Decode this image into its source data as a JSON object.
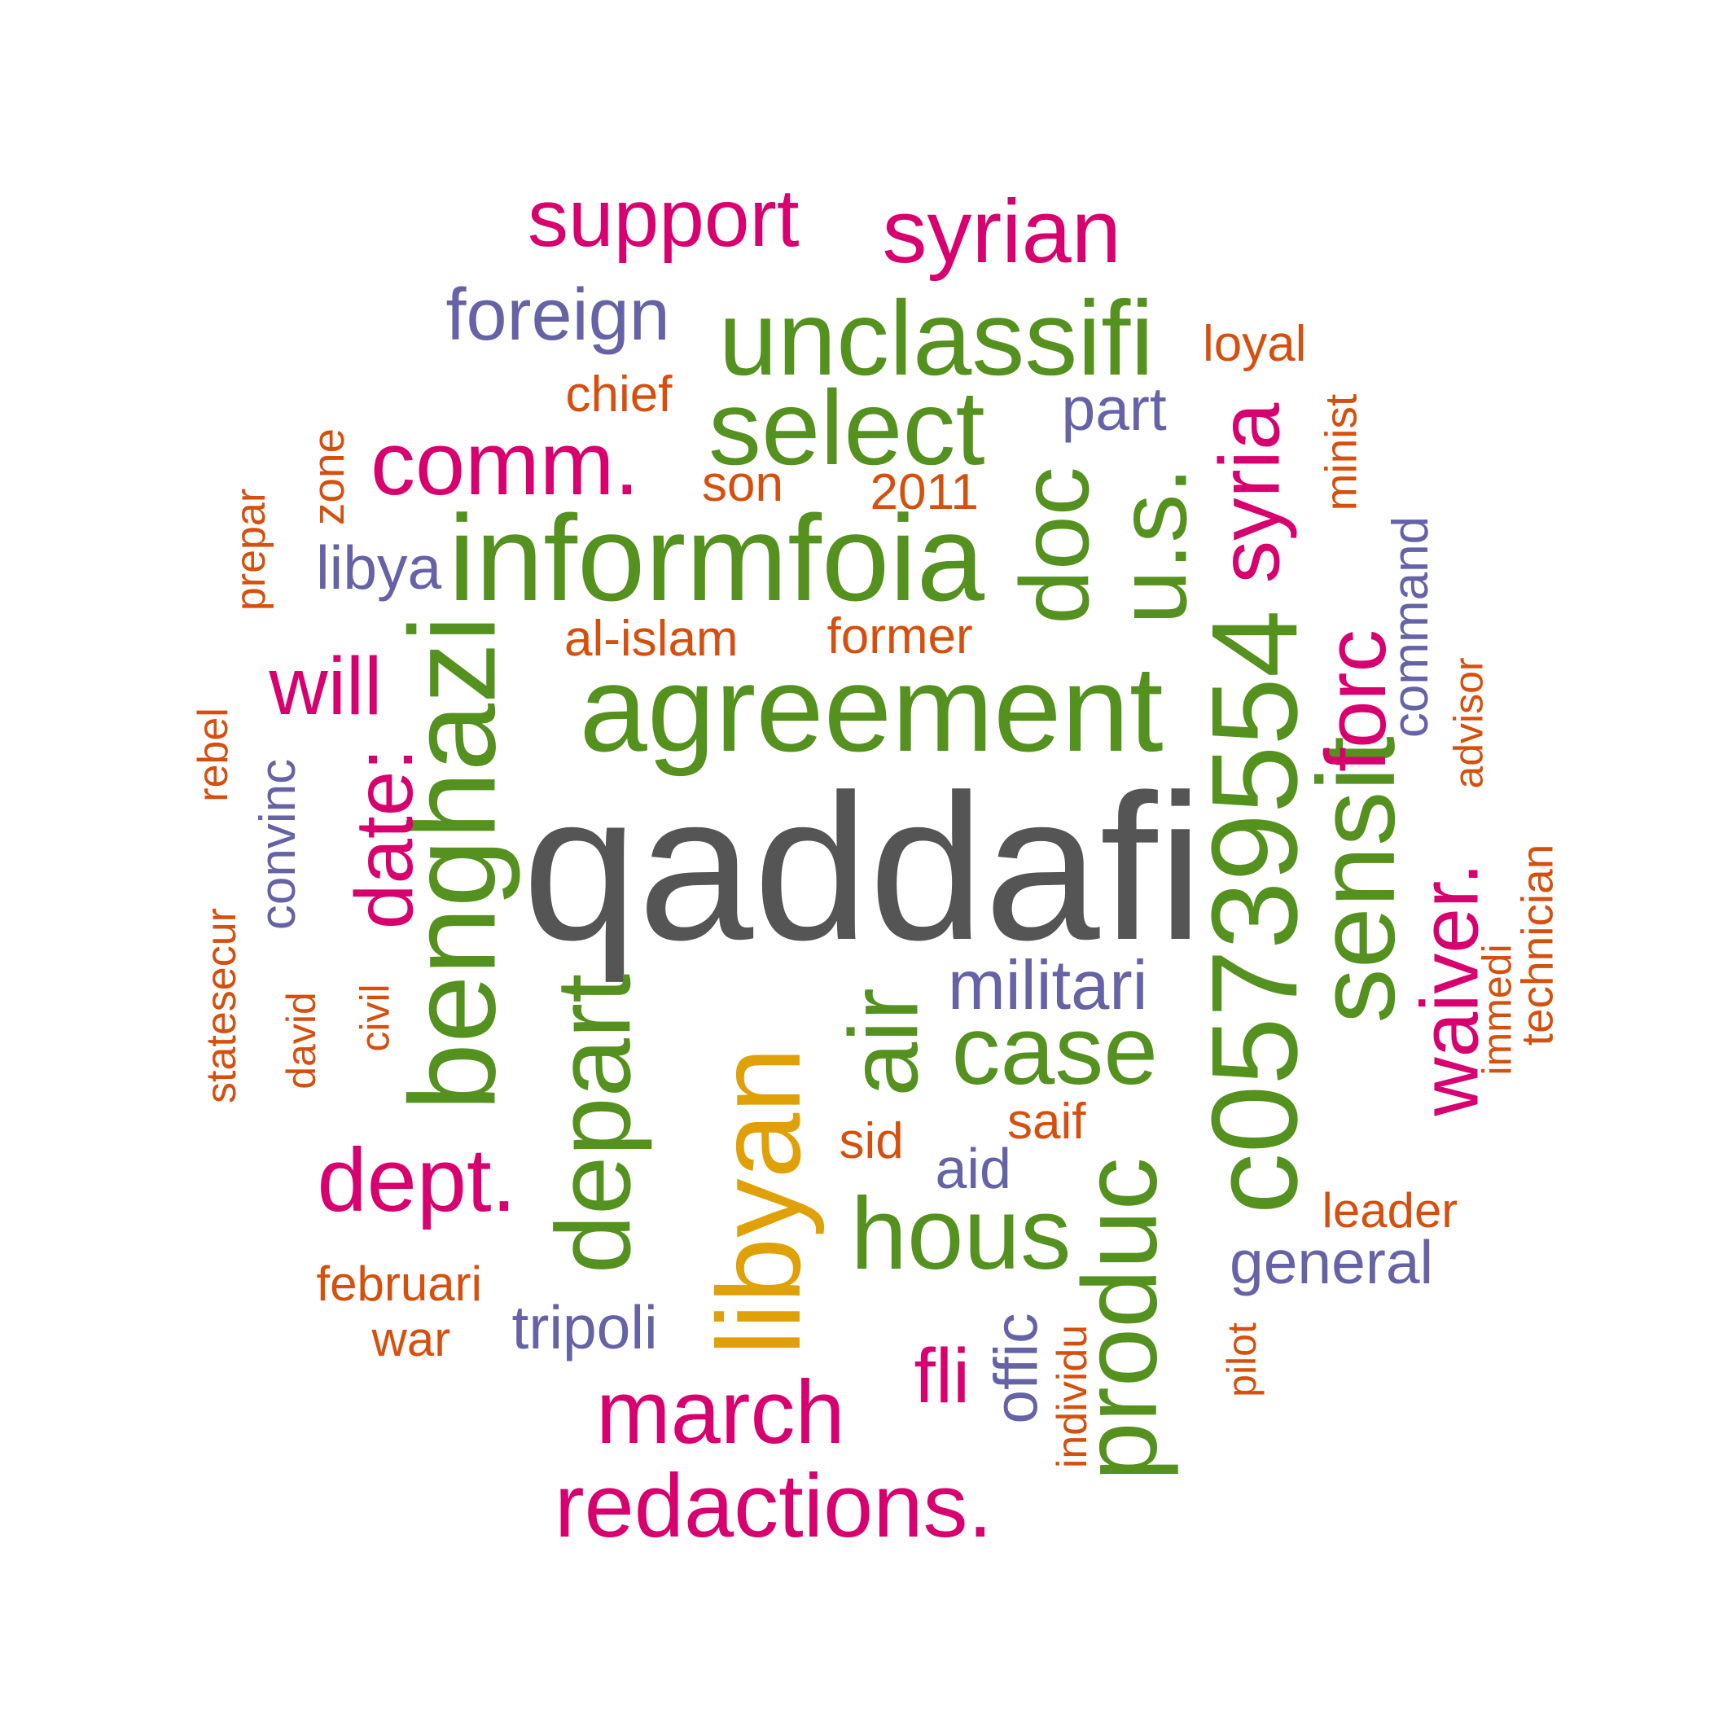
{
  "colors": {
    "gray": "#555555",
    "green": "#55911E",
    "magenta": "#D8006F",
    "orange": "#D5500E",
    "purple": "#6562A6",
    "gold": "#E0A008",
    "background": "#ffffff"
  },
  "words": [
    {
      "text": "qaddafi",
      "color": "gray",
      "rotated": false
    },
    {
      "text": "agreement",
      "color": "green",
      "rotated": false
    },
    {
      "text": "informfoia",
      "color": "green",
      "rotated": false
    },
    {
      "text": "unclassifi",
      "color": "green",
      "rotated": false
    },
    {
      "text": "select",
      "color": "green",
      "rotated": false
    },
    {
      "text": "case",
      "color": "green",
      "rotated": false
    },
    {
      "text": "hous",
      "color": "green",
      "rotated": false
    },
    {
      "text": "benghazi",
      "color": "green",
      "rotated": true
    },
    {
      "text": "depart",
      "color": "green",
      "rotated": true
    },
    {
      "text": "air",
      "color": "green",
      "rotated": true
    },
    {
      "text": "produc",
      "color": "green",
      "rotated": true
    },
    {
      "text": "c05739554",
      "color": "green",
      "rotated": true
    },
    {
      "text": "sensit",
      "color": "green",
      "rotated": true
    },
    {
      "text": "doc",
      "color": "green",
      "rotated": true
    },
    {
      "text": "u.s.",
      "color": "green",
      "rotated": true
    },
    {
      "text": "libyan",
      "color": "gold",
      "rotated": true
    },
    {
      "text": "support",
      "color": "magenta",
      "rotated": false
    },
    {
      "text": "syrian",
      "color": "magenta",
      "rotated": false
    },
    {
      "text": "comm.",
      "color": "magenta",
      "rotated": false
    },
    {
      "text": "will",
      "color": "magenta",
      "rotated": false
    },
    {
      "text": "dept.",
      "color": "magenta",
      "rotated": false
    },
    {
      "text": "march",
      "color": "magenta",
      "rotated": false
    },
    {
      "text": "redactions.",
      "color": "magenta",
      "rotated": false
    },
    {
      "text": "fli",
      "color": "magenta",
      "rotated": false
    },
    {
      "text": "date:",
      "color": "magenta",
      "rotated": true
    },
    {
      "text": "syria",
      "color": "magenta",
      "rotated": true
    },
    {
      "text": "forc",
      "color": "magenta",
      "rotated": true
    },
    {
      "text": "waiver.",
      "color": "magenta",
      "rotated": true
    },
    {
      "text": "foreign",
      "color": "purple",
      "rotated": false
    },
    {
      "text": "part",
      "color": "purple",
      "rotated": false
    },
    {
      "text": "libya",
      "color": "purple",
      "rotated": false
    },
    {
      "text": "militari",
      "color": "purple",
      "rotated": false
    },
    {
      "text": "aid",
      "color": "purple",
      "rotated": false
    },
    {
      "text": "general",
      "color": "purple",
      "rotated": false
    },
    {
      "text": "tripoli",
      "color": "purple",
      "rotated": false
    },
    {
      "text": "command",
      "color": "purple",
      "rotated": true
    },
    {
      "text": "convinc",
      "color": "purple",
      "rotated": true
    },
    {
      "text": "offic",
      "color": "purple",
      "rotated": true
    },
    {
      "text": "loyal",
      "color": "orange",
      "rotated": false
    },
    {
      "text": "chief",
      "color": "orange",
      "rotated": false
    },
    {
      "text": "son",
      "color": "orange",
      "rotated": false
    },
    {
      "text": "2011",
      "color": "orange",
      "rotated": false
    },
    {
      "text": "al-islam",
      "color": "orange",
      "rotated": false
    },
    {
      "text": "former",
      "color": "orange",
      "rotated": false
    },
    {
      "text": "sid",
      "color": "orange",
      "rotated": false
    },
    {
      "text": "saif",
      "color": "orange",
      "rotated": false
    },
    {
      "text": "leader",
      "color": "orange",
      "rotated": false
    },
    {
      "text": "februari",
      "color": "orange",
      "rotated": false
    },
    {
      "text": "war",
      "color": "orange",
      "rotated": false
    },
    {
      "text": "zone",
      "color": "orange",
      "rotated": true
    },
    {
      "text": "prepar",
      "color": "orange",
      "rotated": true
    },
    {
      "text": "minist",
      "color": "orange",
      "rotated": true
    },
    {
      "text": "advisor",
      "color": "orange",
      "rotated": true
    },
    {
      "text": "rebel",
      "color": "orange",
      "rotated": true
    },
    {
      "text": "technician",
      "color": "orange",
      "rotated": true
    },
    {
      "text": "immedi",
      "color": "orange",
      "rotated": true
    },
    {
      "text": "statesecur",
      "color": "orange",
      "rotated": true
    },
    {
      "text": "david",
      "color": "orange",
      "rotated": true
    },
    {
      "text": "civil",
      "color": "orange",
      "rotated": true
    },
    {
      "text": "pilot",
      "color": "orange",
      "rotated": true
    },
    {
      "text": "individu",
      "color": "orange",
      "rotated": true
    }
  ]
}
